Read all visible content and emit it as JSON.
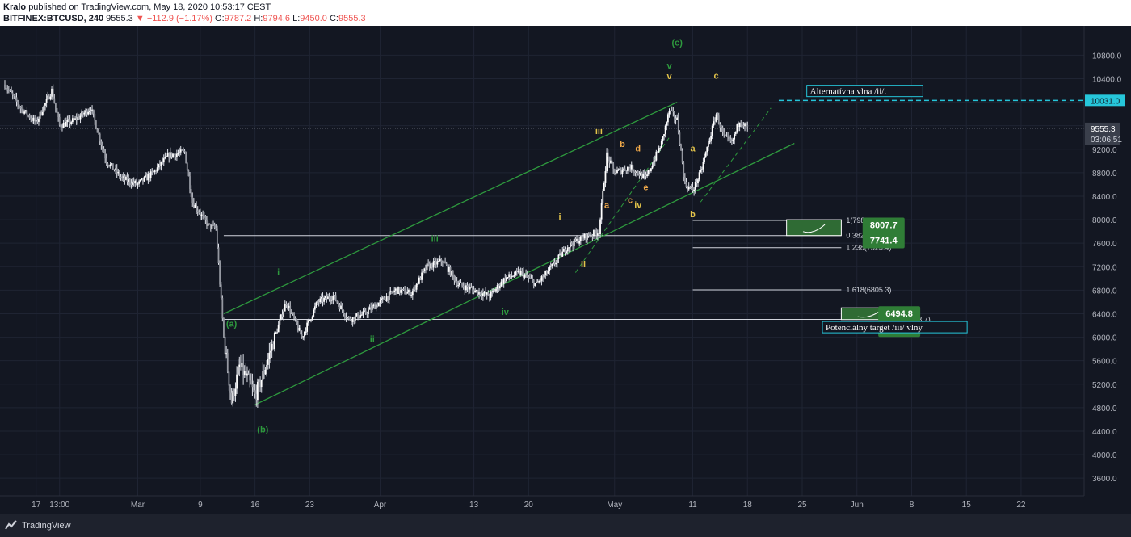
{
  "header": {
    "author": "Kralo",
    "published": "published on TradingView.com, May 18, 2020 10:53:17 CEST",
    "symbol": "BITFINEX:BTCUSD, 240",
    "last": "9555.3",
    "change": "−112.9 (−1.17%)",
    "open_label": "O:",
    "open": "9787.2",
    "high_label": "H:",
    "high": "9794.6",
    "low_label": "L:",
    "low": "9450.0",
    "close_label": "C:",
    "close": "9555.3"
  },
  "footer": {
    "brand": "TradingView"
  },
  "colors": {
    "background": "#131722",
    "candle": "#e0e3eb",
    "channel": "#2e9a3e",
    "wave_green": "#2e9a3e",
    "wave_yellow": "#e3c44a",
    "cyan": "#26c6da",
    "target_box": "#2f6b34",
    "price_tag": "#2f3642"
  },
  "chart_data": {
    "type": "candlestick",
    "ylim": [
      3300,
      11300
    ],
    "y_ticks": [
      3600,
      4000,
      4400,
      4800,
      5200,
      5600,
      6000,
      6400,
      6800,
      7200,
      7600,
      8000,
      8400,
      8800,
      9200,
      9600,
      10000,
      10400,
      10800
    ],
    "y_tick_labels": [
      "3600.0",
      "4000.0",
      "4400.0",
      "4800.0",
      "5200.0",
      "5600.0",
      "6000.0",
      "6400.0",
      "6800.0",
      "7200.0",
      "7600.0",
      "8000.0",
      "8400.0",
      "8800.0",
      "9200.0",
      "9600.0",
      "10000.0",
      "10400.0",
      "10800.0"
    ],
    "x_axis": {
      "start_date": "2020-02-13",
      "end_date": "2020-06-28",
      "ticks": [
        {
          "date": "2020-02-17",
          "label": "17"
        },
        {
          "date": "2020-02-20",
          "label": "13:00"
        },
        {
          "date": "2020-03-01",
          "label": "Mar"
        },
        {
          "date": "2020-03-09",
          "label": "9"
        },
        {
          "date": "2020-03-16",
          "label": "16"
        },
        {
          "date": "2020-03-23",
          "label": "23"
        },
        {
          "date": "2020-04-01",
          "label": "Apr"
        },
        {
          "date": "2020-04-13",
          "label": "13"
        },
        {
          "date": "2020-04-20",
          "label": "20"
        },
        {
          "date": "2020-05-01",
          "label": "May"
        },
        {
          "date": "2020-05-11",
          "label": "11"
        },
        {
          "date": "2020-05-18",
          "label": "18"
        },
        {
          "date": "2020-05-25",
          "label": "25"
        },
        {
          "date": "2020-06-01",
          "label": "Jun"
        },
        {
          "date": "2020-06-08",
          "label": "8"
        },
        {
          "date": "2020-06-15",
          "label": "15"
        },
        {
          "date": "2020-06-22",
          "label": "22"
        }
      ]
    },
    "price_path": [
      {
        "date": "2020-02-13",
        "p": 10300
      },
      {
        "date": "2020-02-15",
        "p": 9900
      },
      {
        "date": "2020-02-17",
        "p": 9650
      },
      {
        "date": "2020-02-19",
        "p": 10200
      },
      {
        "date": "2020-02-20",
        "p": 9600
      },
      {
        "date": "2020-02-22",
        "p": 9700
      },
      {
        "date": "2020-02-24",
        "p": 9900
      },
      {
        "date": "2020-02-26",
        "p": 9000
      },
      {
        "date": "2020-02-28",
        "p": 8700
      },
      {
        "date": "2020-03-01",
        "p": 8600
      },
      {
        "date": "2020-03-03",
        "p": 8800
      },
      {
        "date": "2020-03-05",
        "p": 9100
      },
      {
        "date": "2020-03-07",
        "p": 9150
      },
      {
        "date": "2020-03-08",
        "p": 8300
      },
      {
        "date": "2020-03-10",
        "p": 7900
      },
      {
        "date": "2020-03-11",
        "p": 7850
      },
      {
        "date": "2020-03-12",
        "p": 6000
      },
      {
        "date": "2020-03-13",
        "p": 4900
      },
      {
        "date": "2020-03-14",
        "p": 5500
      },
      {
        "date": "2020-03-15",
        "p": 5300
      },
      {
        "date": "2020-03-16",
        "p": 5000
      },
      {
        "date": "2020-03-17",
        "p": 5350
      },
      {
        "date": "2020-03-19",
        "p": 6200
      },
      {
        "date": "2020-03-20",
        "p": 6600
      },
      {
        "date": "2020-03-22",
        "p": 6000
      },
      {
        "date": "2020-03-24",
        "p": 6600
      },
      {
        "date": "2020-03-26",
        "p": 6700
      },
      {
        "date": "2020-03-28",
        "p": 6300
      },
      {
        "date": "2020-03-30",
        "p": 6400
      },
      {
        "date": "2020-04-01",
        "p": 6600
      },
      {
        "date": "2020-04-03",
        "p": 6800
      },
      {
        "date": "2020-04-05",
        "p": 6750
      },
      {
        "date": "2020-04-07",
        "p": 7200
      },
      {
        "date": "2020-04-09",
        "p": 7300
      },
      {
        "date": "2020-04-11",
        "p": 6900
      },
      {
        "date": "2020-04-13",
        "p": 6800
      },
      {
        "date": "2020-04-15",
        "p": 6700
      },
      {
        "date": "2020-04-17",
        "p": 7000
      },
      {
        "date": "2020-04-19",
        "p": 7100
      },
      {
        "date": "2020-04-21",
        "p": 6900
      },
      {
        "date": "2020-04-23",
        "p": 7200
      },
      {
        "date": "2020-04-25",
        "p": 7550
      },
      {
        "date": "2020-04-27",
        "p": 7700
      },
      {
        "date": "2020-04-29",
        "p": 7800
      },
      {
        "date": "2020-04-30",
        "p": 9100
      },
      {
        "date": "2020-05-01",
        "p": 8800
      },
      {
        "date": "2020-05-03",
        "p": 8900
      },
      {
        "date": "2020-05-05",
        "p": 8700
      },
      {
        "date": "2020-05-07",
        "p": 9300
      },
      {
        "date": "2020-05-08",
        "p": 9850
      },
      {
        "date": "2020-05-09",
        "p": 9700
      },
      {
        "date": "2020-05-10",
        "p": 8600
      },
      {
        "date": "2020-05-11",
        "p": 8500
      },
      {
        "date": "2020-05-12",
        "p": 8800
      },
      {
        "date": "2020-05-13",
        "p": 9300
      },
      {
        "date": "2020-05-14",
        "p": 9800
      },
      {
        "date": "2020-05-15",
        "p": 9400
      },
      {
        "date": "2020-05-16",
        "p": 9300
      },
      {
        "date": "2020-05-17",
        "p": 9700
      },
      {
        "date": "2020-05-18",
        "p": 9555
      }
    ],
    "channel_lines": [
      {
        "from": {
          "date": "2020-03-12",
          "p": 6400
        },
        "to": {
          "date": "2020-05-09",
          "p": 10000
        }
      },
      {
        "from": {
          "date": "2020-03-16",
          "p": 4850
        },
        "to": {
          "date": "2020-05-24",
          "p": 9300
        }
      }
    ],
    "dashed_lines": [
      {
        "from": {
          "date": "2020-04-26",
          "p": 7100
        },
        "to": {
          "date": "2020-05-08",
          "p": 9400
        }
      },
      {
        "from": {
          "date": "2020-05-12",
          "p": 8300
        },
        "to": {
          "date": "2020-05-21",
          "p": 9900
        }
      }
    ],
    "price_lines": {
      "last": {
        "p": 9555.3,
        "label": "9555.3",
        "countdown": "03:06:51"
      },
      "alt": {
        "p": 10031.0,
        "label": "10031.0"
      }
    },
    "horizontal_levels": [
      {
        "p": 7729.8,
        "from": "2020-03-12",
        "to": "2020-05-30",
        "label": "0.382(7729.8)"
      },
      {
        "p": 6303.7,
        "from": "2020-03-12",
        "to": "2020-06-04",
        "label": "0.618(6303.7)"
      },
      {
        "p": 7987.5,
        "from": "2020-05-11",
        "to": "2020-05-30",
        "label": "1(7987.5)"
      },
      {
        "p": 7523.4,
        "from": "2020-05-11",
        "to": "2020-05-30",
        "label": "1.238(7523.4)"
      },
      {
        "p": 6805.3,
        "from": "2020-05-11",
        "to": "2020-05-30",
        "label": "1.618(6805.3)"
      }
    ],
    "target_boxes": [
      {
        "from": "2020-05-23",
        "to": "2020-05-30",
        "top": 8000,
        "bottom": 7730
      },
      {
        "from": "2020-05-30",
        "to": "2020-06-06",
        "top": 6500,
        "bottom": 6300
      }
    ],
    "callouts": [
      {
        "date": "2020-06-04",
        "p": 8007.7,
        "top": "8007.7",
        "bottom": "7741.4"
      },
      {
        "date": "2020-06-06",
        "p": 6500,
        "top": "6494.8",
        "bottom": "6307.1"
      }
    ],
    "annotations": [
      {
        "text": "Alternatívna vlna /ii/.",
        "date": "2020-05-26",
        "p": 10150
      },
      {
        "text": "Potenciálny target /iii/ vlny",
        "date": "2020-05-28",
        "p": 6130
      }
    ],
    "wave_labels": [
      {
        "text": "(a)",
        "date": "2020-03-13",
        "p": 6180,
        "color": "green"
      },
      {
        "text": "(b)",
        "date": "2020-03-17",
        "p": 4380,
        "color": "green"
      },
      {
        "text": "(c)",
        "date": "2020-05-09",
        "p": 10960,
        "color": "green"
      },
      {
        "text": "i",
        "date": "2020-03-19",
        "p": 7060,
        "color": "green"
      },
      {
        "text": "ii",
        "date": "2020-03-31",
        "p": 5920,
        "color": "green"
      },
      {
        "text": "iii",
        "date": "2020-04-08",
        "p": 7620,
        "color": "green"
      },
      {
        "text": "iv",
        "date": "2020-04-17",
        "p": 6380,
        "color": "green"
      },
      {
        "text": "v",
        "date": "2020-05-08",
        "p": 10570,
        "color": "green"
      },
      {
        "text": "i",
        "date": "2020-04-24",
        "p": 8000,
        "color": "yellow"
      },
      {
        "text": "ii",
        "date": "2020-04-27",
        "p": 7190,
        "color": "yellow"
      },
      {
        "text": "iii",
        "date": "2020-04-29",
        "p": 9460,
        "color": "yellow"
      },
      {
        "text": "iv",
        "date": "2020-05-04",
        "p": 8200,
        "color": "yellow"
      },
      {
        "text": "v",
        "date": "2020-05-08",
        "p": 10390,
        "color": "yellow"
      },
      {
        "text": "a",
        "date": "2020-04-30",
        "p": 8200,
        "color": "orange"
      },
      {
        "text": "b",
        "date": "2020-05-02",
        "p": 9240,
        "color": "orange"
      },
      {
        "text": "c",
        "date": "2020-05-03",
        "p": 8280,
        "color": "orange"
      },
      {
        "text": "d",
        "date": "2020-05-04",
        "p": 9160,
        "color": "orange"
      },
      {
        "text": "e",
        "date": "2020-05-05",
        "p": 8500,
        "color": "orange"
      },
      {
        "text": "a",
        "date": "2020-05-11",
        "p": 9160,
        "color": "yellow"
      },
      {
        "text": "b",
        "date": "2020-05-11",
        "p": 8040,
        "color": "yellow"
      },
      {
        "text": "c",
        "date": "2020-05-14",
        "p": 10400,
        "color": "yellow"
      }
    ]
  }
}
